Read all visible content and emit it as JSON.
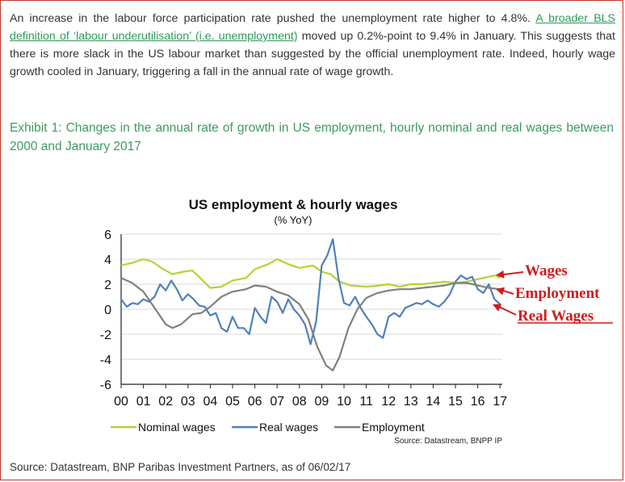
{
  "article": {
    "para_before_link": "An increase in the labour force participation rate pushed the unemployment rate higher to 4.8%. ",
    "link_text": "A broader BLS definition of ‘labour underutilisation’ (i.e. unemployment)",
    "para_after_link": " moved up 0.2%-point to 9.4% in January. This suggests that there is more slack in the US labour market than suggested by the official unemployment rate. Indeed, hourly wage growth cooled in January, triggering a fall in the annual rate of wage growth.",
    "exhibit_title": "Exhibit 1: Changes in the annual rate of growth in US employment,  hourly nominal and real wages between 2000 and January 2017",
    "source": "Source: Datastream, BNP Paribas Investment Partners, as of 06/02/17"
  },
  "chart_data": {
    "type": "line",
    "title": "US employment & hourly wages",
    "subtitle": "(% YoY)",
    "source_note": "Source: Datastream, BNPP IP",
    "xlim": [
      2000,
      2017.1
    ],
    "ylim": [
      -6,
      6
    ],
    "y_ticks": [
      "6",
      "4",
      "2",
      "0",
      "-2",
      "-4",
      "-6"
    ],
    "x_ticks": [
      "00",
      "01",
      "02",
      "03",
      "04",
      "05",
      "06",
      "07",
      "08",
      "09",
      "10",
      "11",
      "12",
      "13",
      "14",
      "15",
      "16",
      "17"
    ],
    "grid": true,
    "legend_position": "bottom",
    "annotations": [
      "Wages",
      "Employment",
      "Real Wages"
    ],
    "series": [
      {
        "name": "Nominal wages",
        "color": "#b4d334",
        "points": [
          [
            2000,
            3.5
          ],
          [
            2000.5,
            3.7
          ],
          [
            2001,
            4.0
          ],
          [
            2001.4,
            3.8
          ],
          [
            2001.8,
            3.3
          ],
          [
            2002.3,
            2.8
          ],
          [
            2002.8,
            3.0
          ],
          [
            2003.2,
            3.1
          ],
          [
            2003.6,
            2.4
          ],
          [
            2004,
            1.7
          ],
          [
            2004.5,
            1.8
          ],
          [
            2005,
            2.3
          ],
          [
            2005.6,
            2.5
          ],
          [
            2006,
            3.2
          ],
          [
            2006.6,
            3.6
          ],
          [
            2007,
            4.0
          ],
          [
            2007.5,
            3.6
          ],
          [
            2008,
            3.3
          ],
          [
            2008.6,
            3.5
          ],
          [
            2009,
            3.0
          ],
          [
            2009.4,
            2.8
          ],
          [
            2009.8,
            2.2
          ],
          [
            2010.3,
            1.9
          ],
          [
            2011,
            1.8
          ],
          [
            2011.6,
            1.9
          ],
          [
            2012,
            2.0
          ],
          [
            2012.5,
            1.8
          ],
          [
            2013,
            2.0
          ],
          [
            2013.5,
            2.0
          ],
          [
            2014,
            2.1
          ],
          [
            2014.5,
            2.2
          ],
          [
            2015,
            2.1
          ],
          [
            2015.5,
            2.2
          ],
          [
            2016,
            2.4
          ],
          [
            2016.5,
            2.6
          ],
          [
            2016.8,
            2.7
          ],
          [
            2017,
            2.5
          ]
        ]
      },
      {
        "name": "Real wages",
        "color": "#4f81bd",
        "points": [
          [
            2000,
            0.8
          ],
          [
            2000.25,
            0.2
          ],
          [
            2000.5,
            0.5
          ],
          [
            2000.75,
            0.4
          ],
          [
            2001,
            0.8
          ],
          [
            2001.25,
            0.6
          ],
          [
            2001.5,
            1.0
          ],
          [
            2001.75,
            2.0
          ],
          [
            2002,
            1.5
          ],
          [
            2002.25,
            2.3
          ],
          [
            2002.5,
            1.6
          ],
          [
            2002.75,
            0.7
          ],
          [
            2003,
            1.2
          ],
          [
            2003.25,
            0.8
          ],
          [
            2003.5,
            0.3
          ],
          [
            2003.75,
            0.2
          ],
          [
            2004,
            -0.5
          ],
          [
            2004.25,
            -0.3
          ],
          [
            2004.5,
            -1.5
          ],
          [
            2004.75,
            -1.8
          ],
          [
            2005,
            -0.6
          ],
          [
            2005.25,
            -1.5
          ],
          [
            2005.5,
            -1.5
          ],
          [
            2005.75,
            -2.0
          ],
          [
            2006,
            0.1
          ],
          [
            2006.25,
            -0.6
          ],
          [
            2006.5,
            -1.1
          ],
          [
            2006.75,
            1.0
          ],
          [
            2007,
            0.6
          ],
          [
            2007.25,
            -0.3
          ],
          [
            2007.5,
            0.8
          ],
          [
            2007.75,
            0.0
          ],
          [
            2008,
            -0.5
          ],
          [
            2008.25,
            -1.2
          ],
          [
            2008.5,
            -2.8
          ],
          [
            2008.75,
            -1.0
          ],
          [
            2009,
            3.5
          ],
          [
            2009.25,
            4.3
          ],
          [
            2009.5,
            5.6
          ],
          [
            2009.75,
            2.5
          ],
          [
            2010,
            0.5
          ],
          [
            2010.25,
            0.3
          ],
          [
            2010.5,
            1.0
          ],
          [
            2010.75,
            0.1
          ],
          [
            2011,
            -0.6
          ],
          [
            2011.25,
            -1.2
          ],
          [
            2011.5,
            -2.0
          ],
          [
            2011.75,
            -2.3
          ],
          [
            2012,
            -0.6
          ],
          [
            2012.25,
            -0.3
          ],
          [
            2012.5,
            -0.6
          ],
          [
            2012.75,
            0.1
          ],
          [
            2013,
            0.3
          ],
          [
            2013.25,
            0.5
          ],
          [
            2013.5,
            0.4
          ],
          [
            2013.75,
            0.7
          ],
          [
            2014,
            0.4
          ],
          [
            2014.25,
            0.2
          ],
          [
            2014.5,
            0.6
          ],
          [
            2014.75,
            1.2
          ],
          [
            2015,
            2.2
          ],
          [
            2015.25,
            2.7
          ],
          [
            2015.5,
            2.4
          ],
          [
            2015.75,
            2.6
          ],
          [
            2016,
            1.6
          ],
          [
            2016.25,
            1.3
          ],
          [
            2016.5,
            2.0
          ],
          [
            2016.75,
            0.8
          ],
          [
            2017,
            0.4
          ]
        ]
      },
      {
        "name": "Employment",
        "color": "#808080",
        "points": [
          [
            2000,
            2.5
          ],
          [
            2000.5,
            2.1
          ],
          [
            2001,
            1.4
          ],
          [
            2001.5,
            0.1
          ],
          [
            2002,
            -1.2
          ],
          [
            2002.3,
            -1.5
          ],
          [
            2002.7,
            -1.2
          ],
          [
            2003.2,
            -0.4
          ],
          [
            2003.6,
            -0.3
          ],
          [
            2004,
            0.2
          ],
          [
            2004.5,
            1.0
          ],
          [
            2005,
            1.4
          ],
          [
            2005.6,
            1.6
          ],
          [
            2006,
            1.9
          ],
          [
            2006.5,
            1.8
          ],
          [
            2007,
            1.4
          ],
          [
            2007.5,
            1.1
          ],
          [
            2008,
            0.4
          ],
          [
            2008.4,
            -0.8
          ],
          [
            2008.8,
            -3.0
          ],
          [
            2009.2,
            -4.5
          ],
          [
            2009.5,
            -4.9
          ],
          [
            2009.8,
            -3.8
          ],
          [
            2010.2,
            -1.5
          ],
          [
            2010.6,
            0.0
          ],
          [
            2011,
            0.9
          ],
          [
            2011.5,
            1.3
          ],
          [
            2012,
            1.5
          ],
          [
            2012.5,
            1.6
          ],
          [
            2013,
            1.6
          ],
          [
            2013.5,
            1.7
          ],
          [
            2014,
            1.8
          ],
          [
            2014.5,
            1.9
          ],
          [
            2015,
            2.1
          ],
          [
            2015.5,
            2.1
          ],
          [
            2016,
            1.9
          ],
          [
            2016.5,
            1.7
          ],
          [
            2017,
            1.6
          ]
        ]
      }
    ]
  }
}
